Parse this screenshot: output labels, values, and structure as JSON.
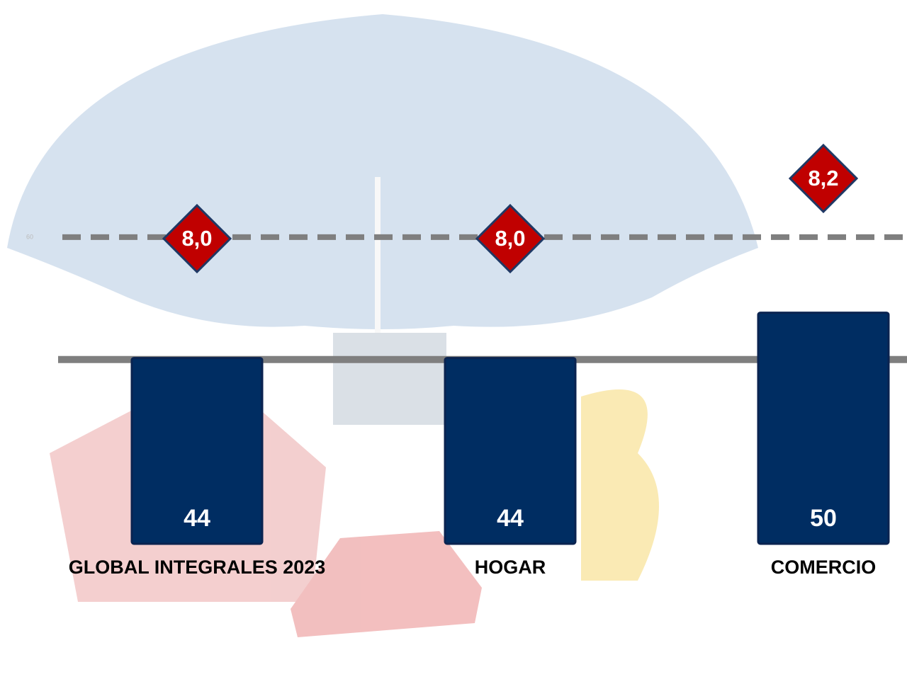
{
  "chart_data": {
    "type": "bar",
    "categories": [
      "GLOBAL INTEGRALES 2023",
      "HOGAR",
      "COMERCIO"
    ],
    "series": [
      {
        "values": [
          44,
          44,
          50
        ],
        "color": "#002d62"
      },
      {
        "values": [
          8.0,
          8.0,
          8.2
        ],
        "value_labels": [
          "8,0",
          "8,0",
          "8,2"
        ],
        "color": "#c00000",
        "axis": "y2"
      }
    ],
    "ylim": [
      19.4,
      91.4
    ],
    "yticks": [
      60
    ],
    "grid": true,
    "y2lim": [
      6.986,
      8.793
    ],
    "reference_line": 43.8
  }
}
